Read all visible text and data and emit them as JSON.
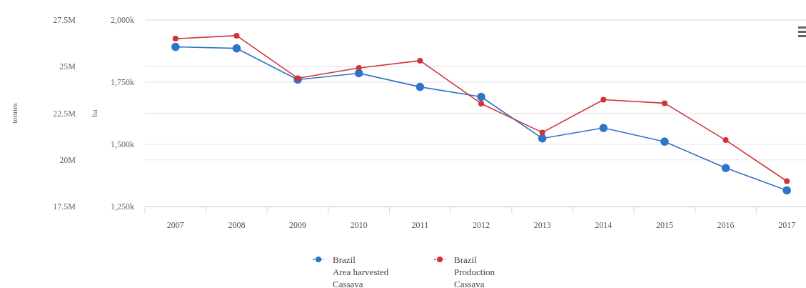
{
  "chart_data": {
    "type": "line",
    "categories": [
      "2007",
      "2008",
      "2009",
      "2010",
      "2011",
      "2012",
      "2013",
      "2014",
      "2015",
      "2016",
      "2017"
    ],
    "ylabel": "tonnes",
    "y2label": "ha",
    "ylim": [
      17500000,
      27500000
    ],
    "yticks": [
      {
        "value": 17500000,
        "label": "17.5M"
      },
      {
        "value": 20000000,
        "label": "20M"
      },
      {
        "value": 22500000,
        "label": "22.5M"
      },
      {
        "value": 25000000,
        "label": "25M"
      },
      {
        "value": 27500000,
        "label": "27.5M"
      }
    ],
    "y2lim": [
      1250000,
      2000000
    ],
    "y2ticks": [
      {
        "value": 1250000,
        "label": "1,250k"
      },
      {
        "value": 1500000,
        "label": "1,500k"
      },
      {
        "value": 1750000,
        "label": "1,750k"
      },
      {
        "value": 2000000,
        "label": "2,000k"
      }
    ],
    "series": [
      {
        "name": "Brazil\nArea harvested\nCassava",
        "color": "#2e74c9",
        "axis": "y2",
        "values": [
          1892000,
          1886000,
          1760000,
          1786000,
          1731000,
          1691000,
          1524000,
          1566000,
          1511000,
          1405000,
          1315000
        ]
      },
      {
        "name": "Brazil\nProduction\nCassava",
        "color": "#d13438",
        "axis": "y",
        "values": [
          26500000,
          26660000,
          24380000,
          24930000,
          25320000,
          23020000,
          21470000,
          23230000,
          23040000,
          21060000,
          18860000
        ]
      }
    ],
    "grid": true,
    "legend": "bottom",
    "marker": "circle",
    "line_style": "solid"
  }
}
